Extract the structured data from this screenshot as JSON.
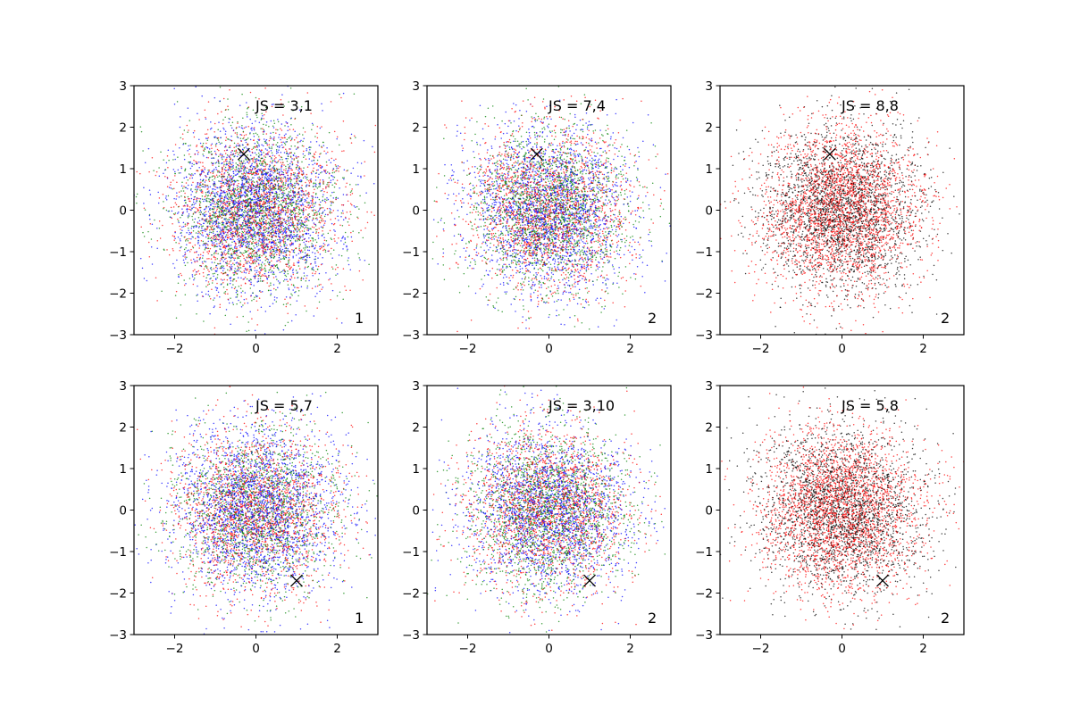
{
  "figure": {
    "layout": "2x3 grid of scatter subplots"
  },
  "chart_data": [
    {
      "type": "scatter",
      "row": 0,
      "col": 0,
      "annotation": "JS = 3,1",
      "corner_label": "1",
      "xlim": [
        -3,
        3
      ],
      "ylim": [
        -3,
        3
      ],
      "xticks": [
        -2,
        0,
        2
      ],
      "yticks": [
        -3,
        -2,
        -1,
        0,
        1,
        2,
        3
      ],
      "grid": false,
      "series": [
        {
          "color": "#0000ff",
          "distribution": "standard normal",
          "n_points": 2200
        },
        {
          "color": "#ff0000",
          "distribution": "standard normal",
          "n_points": 1800
        },
        {
          "color": "#008000",
          "distribution": "standard normal",
          "n_points": 1800
        }
      ],
      "marker": {
        "symbol": "x",
        "color": "#000000",
        "x": -0.3,
        "y": 1.35
      }
    },
    {
      "type": "scatter",
      "row": 0,
      "col": 1,
      "annotation": "JS = 7,4",
      "corner_label": "2",
      "xlim": [
        -3,
        3
      ],
      "ylim": [
        -3,
        3
      ],
      "xticks": [
        -2,
        0,
        2
      ],
      "yticks": [
        -3,
        -2,
        -1,
        0,
        1,
        2,
        3
      ],
      "grid": false,
      "series": [
        {
          "color": "#0000ff",
          "distribution": "standard normal",
          "n_points": 2000
        },
        {
          "color": "#ff0000",
          "distribution": "standard normal",
          "n_points": 1800
        },
        {
          "color": "#008000",
          "distribution": "standard normal",
          "n_points": 1800
        }
      ],
      "marker": {
        "symbol": "x",
        "color": "#000000",
        "x": -0.3,
        "y": 1.35
      }
    },
    {
      "type": "scatter",
      "row": 0,
      "col": 2,
      "annotation": "JS = 8,8",
      "corner_label": "2",
      "xlim": [
        -3,
        3
      ],
      "ylim": [
        -3,
        3
      ],
      "xticks": [
        -2,
        0,
        2
      ],
      "yticks": [
        -3,
        -2,
        -1,
        0,
        1,
        2,
        3
      ],
      "grid": false,
      "series": [
        {
          "color": "#000000",
          "distribution": "standard normal",
          "n_points": 2400
        },
        {
          "color": "#ff0000",
          "distribution": "standard normal",
          "n_points": 2600
        }
      ],
      "marker": {
        "symbol": "x",
        "color": "#000000",
        "x": -0.3,
        "y": 1.35
      }
    },
    {
      "type": "scatter",
      "row": 1,
      "col": 0,
      "annotation": "JS = 5,7",
      "corner_label": "1",
      "xlim": [
        -3,
        3
      ],
      "ylim": [
        -3,
        3
      ],
      "xticks": [
        -2,
        0,
        2
      ],
      "yticks": [
        -3,
        -2,
        -1,
        0,
        1,
        2,
        3
      ],
      "grid": false,
      "series": [
        {
          "color": "#0000ff",
          "distribution": "standard normal",
          "n_points": 2200
        },
        {
          "color": "#ff0000",
          "distribution": "standard normal",
          "n_points": 1800
        },
        {
          "color": "#008000",
          "distribution": "standard normal",
          "n_points": 1600
        }
      ],
      "marker": {
        "symbol": "x",
        "color": "#000000",
        "x": 1.0,
        "y": -1.7
      }
    },
    {
      "type": "scatter",
      "row": 1,
      "col": 1,
      "annotation": "JS = 3,10",
      "corner_label": "2",
      "xlim": [
        -3,
        3
      ],
      "ylim": [
        -3,
        3
      ],
      "xticks": [
        -2,
        0,
        2
      ],
      "yticks": [
        -3,
        -2,
        -1,
        0,
        1,
        2,
        3
      ],
      "grid": false,
      "series": [
        {
          "color": "#0000ff",
          "distribution": "standard normal",
          "n_points": 2000
        },
        {
          "color": "#ff0000",
          "distribution": "standard normal",
          "n_points": 1800
        },
        {
          "color": "#008000",
          "distribution": "standard normal",
          "n_points": 1800
        }
      ],
      "marker": {
        "symbol": "x",
        "color": "#000000",
        "x": 1.0,
        "y": -1.7
      }
    },
    {
      "type": "scatter",
      "row": 1,
      "col": 2,
      "annotation": "JS = 5,8",
      "corner_label": "2",
      "xlim": [
        -3,
        3
      ],
      "ylim": [
        -3,
        3
      ],
      "xticks": [
        -2,
        0,
        2
      ],
      "yticks": [
        -3,
        -2,
        -1,
        0,
        1,
        2,
        3
      ],
      "grid": false,
      "series": [
        {
          "color": "#000000",
          "distribution": "standard normal",
          "n_points": 2400
        },
        {
          "color": "#ff0000",
          "distribution": "standard normal",
          "n_points": 2600
        }
      ],
      "marker": {
        "symbol": "x",
        "color": "#000000",
        "x": 1.0,
        "y": -1.7
      }
    }
  ]
}
